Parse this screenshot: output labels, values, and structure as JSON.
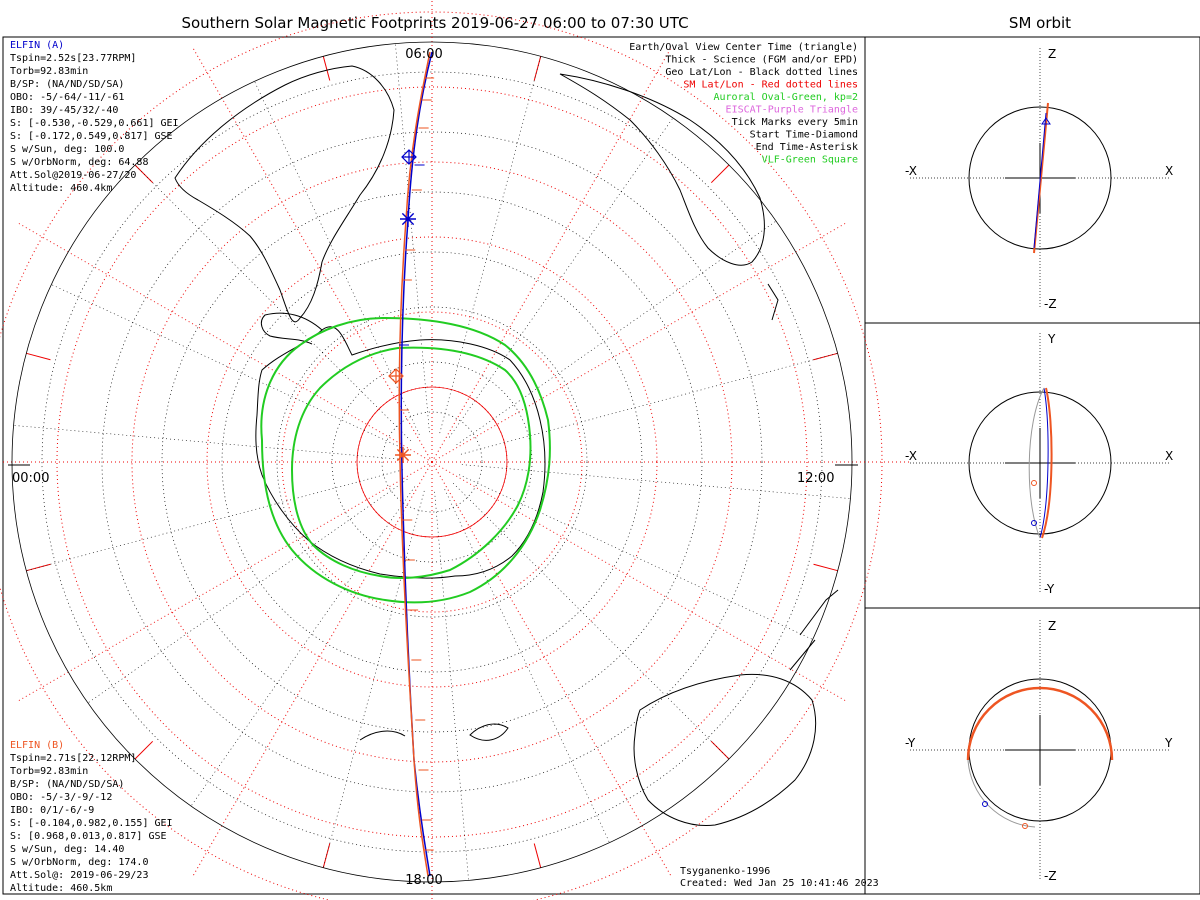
{
  "title": "Southern Solar Magnetic Footprints 2019-06-27 06:00 to 07:30 UTC",
  "side_title": "SM orbit",
  "time_labels": {
    "top": "06:00",
    "bottom": "18:00",
    "left": "00:00",
    "right": "12:00"
  },
  "sat_a": {
    "name": "ELFIN (A)",
    "color": "#0000cc",
    "lines": [
      "Tspin=2.52s[23.77RPM]",
      "Torb=92.83min",
      "B/SP: (NA/ND/SD/SA)",
      "OBO: -5/-64/-11/-61",
      "IBO: 39/-45/32/-40",
      "S: [-0.530,-0.529,0.661] GEI",
      "S: [-0.172,0.549,0.817] GSE",
      "S w/Sun, deg: 100.0",
      "S w/OrbNorm, deg: 64.88",
      "Att.Sol@2019-06-27/20",
      "Altitude: 460.4km"
    ]
  },
  "sat_b": {
    "name": "ELFIN (B)",
    "color": "#ee5522",
    "lines": [
      "Tspin=2.71s[22.12RPM]",
      "Torb=92.83min",
      "B/SP: (NA/ND/SD/SA)",
      "OBO: -5/-3/-9/-12",
      "IBO: 0/1/-6/-9",
      "S: [-0.104,0.982,0.155] GEI",
      "S: [0.968,0.013,0.817] GSE",
      "S w/Sun, deg: 14.40",
      "S w/OrbNorm, deg: 174.0",
      "Att.Sol@: 2019-06-29/23",
      "Altitude: 460.5km"
    ]
  },
  "legend": [
    {
      "text": "Earth/Oval View Center Time (triangle)",
      "color": "#000000"
    },
    {
      "text": "Thick - Science (FGM and/or EPD)",
      "color": "#000000"
    },
    {
      "text": "Geo Lat/Lon - Black dotted lines",
      "color": "#000000"
    },
    {
      "text": "SM Lat/Lon - Red dotted lines",
      "color": "#ee0000"
    },
    {
      "text": "Auroral Oval-Green, kp=2",
      "color": "#22cc22"
    },
    {
      "text": "EISCAT-Purple Triangle",
      "color": "#dd66dd"
    },
    {
      "text": "Tick Marks every 5min",
      "color": "#000000"
    },
    {
      "text": "Start Time-Diamond",
      "color": "#000000"
    },
    {
      "text": "End Time-Asterisk",
      "color": "#000000"
    },
    {
      "text": "VLF-Green Square",
      "color": "#22cc22"
    }
  ],
  "footer": {
    "model": "Tsyganenko-1996",
    "created": "Created: Wed Jan 25 10:41:46 2023"
  },
  "panels": [
    {
      "top": "Z",
      "bottom": "-Z",
      "left": "-X",
      "right": "X"
    },
    {
      "top": "Y",
      "bottom": "-Y",
      "left": "-X",
      "right": "X"
    },
    {
      "top": "Z",
      "bottom": "-Z",
      "left": "-Y",
      "right": "Y"
    }
  ],
  "colors": {
    "geo_grid": "#000000",
    "sm_grid": "#ee0000",
    "oval": "#22cc22",
    "track_a": "#0000cc",
    "track_b": "#ee5522",
    "orbit_gray": "#999999"
  }
}
